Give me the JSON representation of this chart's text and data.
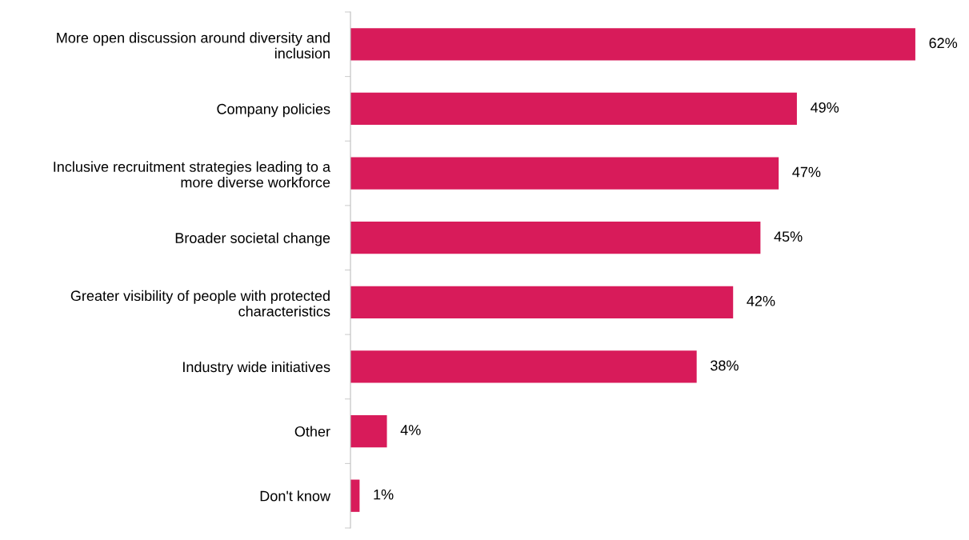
{
  "chart_data": {
    "type": "bar",
    "orientation": "horizontal",
    "categories": [
      "More open discussion around diversity and\ninclusion",
      "Company policies",
      "Inclusive recruitment strategies leading to a\nmore diverse workforce",
      "Broader societal change",
      "Greater visibility of people with protected\ncharacteristics",
      "Industry wide initiatives",
      "Other",
      "Don't know"
    ],
    "values": [
      62,
      49,
      47,
      45,
      42,
      38,
      4,
      1
    ],
    "value_labels": [
      "62%",
      "49%",
      "47%",
      "45%",
      "42%",
      "38%",
      "4%",
      "1%"
    ],
    "color": "#d81b5a",
    "grid": false,
    "legend": false
  }
}
